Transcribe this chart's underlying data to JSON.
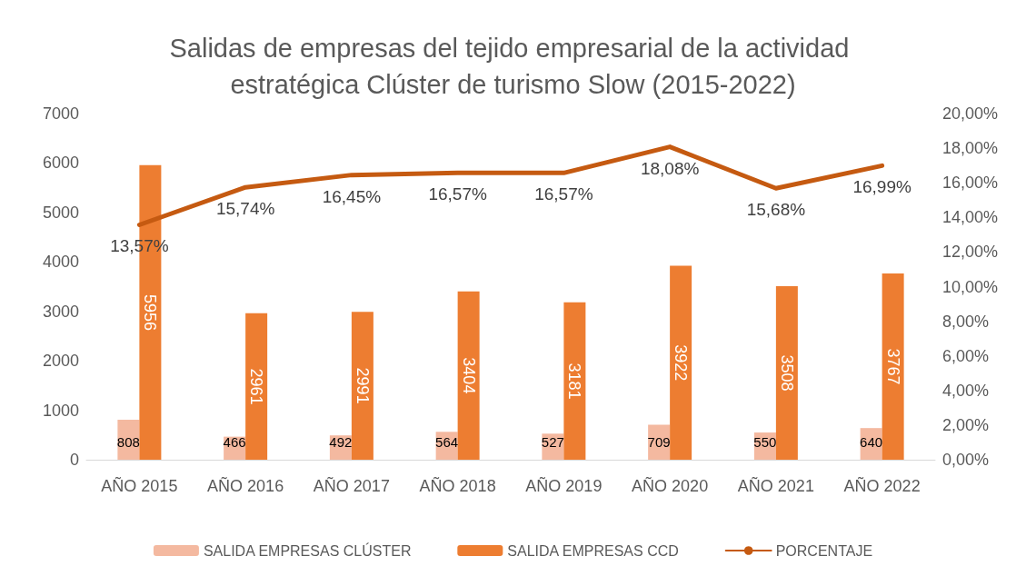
{
  "chart_data": {
    "type": "bar",
    "title": "Salidas de empresas del tejido empresarial de la actividad estratégica Clúster de turismo Slow (2015-2022)",
    "categories": [
      "AÑO 2015",
      "AÑO 2016",
      "AÑO 2017",
      "AÑO 2018",
      "AÑO 2019",
      "AÑO 2020",
      "AÑO 2021",
      "AÑO 2022"
    ],
    "series": [
      {
        "name": "SALIDA EMPRESAS CLÚSTER",
        "color": "#f4b9a0",
        "values": [
          808,
          466,
          492,
          564,
          527,
          709,
          550,
          640
        ],
        "value_labels": [
          "808",
          "466",
          "492",
          "564",
          "527",
          "709",
          "550",
          "640"
        ]
      },
      {
        "name": "SALIDA EMPRESAS CCD",
        "color": "#ed7d31",
        "values": [
          5956,
          2961,
          2991,
          3404,
          3181,
          3922,
          3508,
          3767
        ],
        "value_labels": [
          "5956",
          "2961",
          "2991",
          "3404",
          "3181",
          "3922",
          "3508",
          "3767"
        ]
      },
      {
        "name": "PORCENTAJE",
        "type": "line",
        "axis": "y2",
        "color": "#c55a11",
        "values": [
          13.57,
          15.74,
          16.45,
          16.57,
          16.57,
          18.08,
          15.68,
          16.99
        ],
        "value_labels": [
          "13,57%",
          "15,74%",
          "16,45%",
          "16,57%",
          "16,57%",
          "18,08%",
          "15,68%",
          "16,99%"
        ]
      }
    ],
    "ylim": [
      0,
      7000
    ],
    "yticks": [
      0,
      1000,
      2000,
      3000,
      4000,
      5000,
      6000,
      7000
    ],
    "y2lim": [
      0,
      20
    ],
    "y2ticks": [
      {
        "value": 0,
        "label": "0,00%"
      },
      {
        "value": 2,
        "label": "2,00%"
      },
      {
        "value": 4,
        "label": "4,00%"
      },
      {
        "value": 6,
        "label": "6,00%"
      },
      {
        "value": 8,
        "label": "8,00%"
      },
      {
        "value": 10,
        "label": "10,00%"
      },
      {
        "value": 12,
        "label": "12,00%"
      },
      {
        "value": 14,
        "label": "14,00%"
      },
      {
        "value": 16,
        "label": "16,00%"
      },
      {
        "value": 18,
        "label": "18,00%"
      },
      {
        "value": 20,
        "label": "20,00%"
      }
    ],
    "grid": false,
    "legend": "bottom",
    "marker": "none"
  }
}
